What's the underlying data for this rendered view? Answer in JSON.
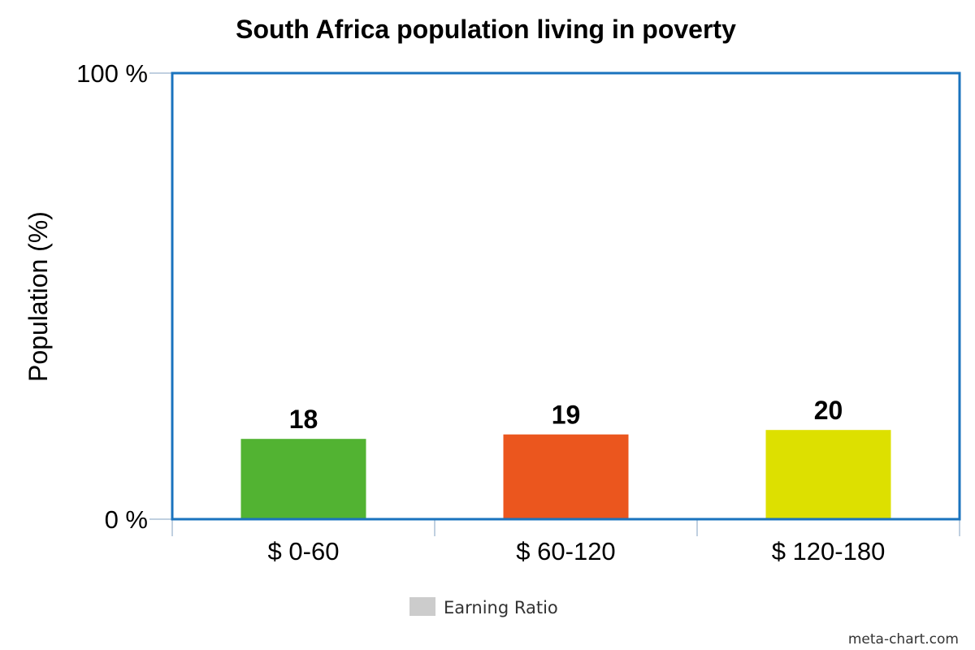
{
  "chart_data": {
    "type": "bar",
    "title": "South Africa population living in poverty",
    "ylabel": "Population (%)",
    "xlabel": "",
    "categories": [
      "$ 0-60",
      "$ 60-120",
      "$ 120-180"
    ],
    "series": [
      {
        "name": "Earning Ratio",
        "values": [
          18,
          19,
          20
        ]
      }
    ],
    "bar_colors": [
      "#52b332",
      "#eb561e",
      "#dde000"
    ],
    "ylim": [
      0,
      100
    ],
    "y_ticks": [
      {
        "value": 0,
        "label": "0 %"
      },
      {
        "value": 100,
        "label": "100 %"
      }
    ],
    "data_labels": [
      "18",
      "19",
      "20"
    ],
    "legend_position": "bottom",
    "legend_swatch_color": "#cccccc",
    "plot_border_color": "#1a73be",
    "grid": false
  },
  "credit": "meta-chart.com"
}
